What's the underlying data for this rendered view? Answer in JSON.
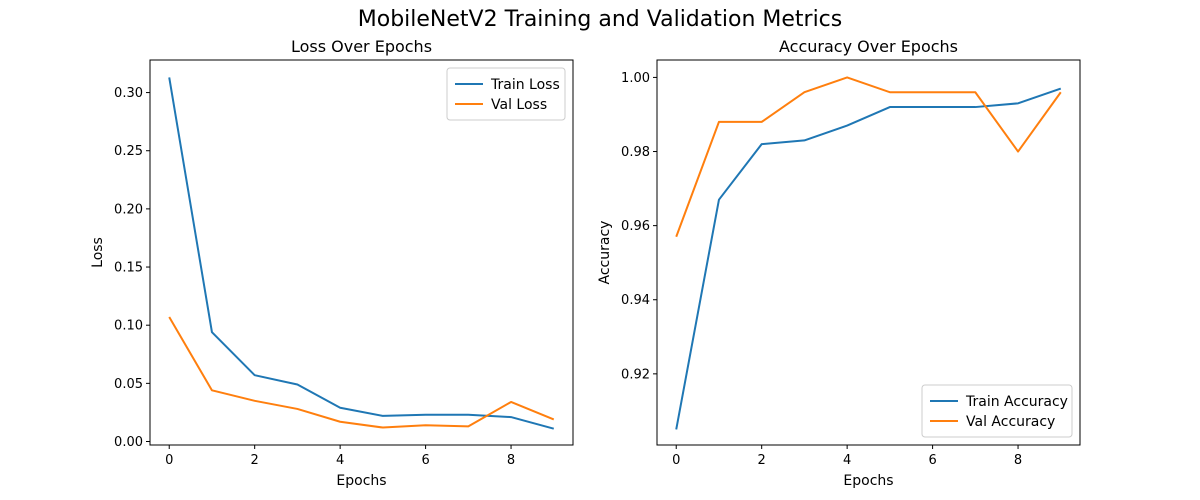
{
  "figure": {
    "title": "MobileNetV2 Training and Validation Metrics"
  },
  "chart_data": [
    {
      "type": "line",
      "title": "Loss Over Epochs",
      "xlabel": "Epochs",
      "ylabel": "Loss",
      "x": [
        0,
        1,
        2,
        3,
        4,
        5,
        6,
        7,
        8,
        9
      ],
      "xlim": [
        -0.45,
        9.45
      ],
      "ylim": [
        -0.003,
        0.328
      ],
      "xticks": [
        0,
        2,
        4,
        6,
        8
      ],
      "yticks": [
        0.0,
        0.05,
        0.1,
        0.15,
        0.2,
        0.25,
        0.3
      ],
      "ytick_labels": [
        "0.00",
        "0.05",
        "0.10",
        "0.15",
        "0.20",
        "0.25",
        "0.30"
      ],
      "legend_position": "upper right",
      "grid": false,
      "series": [
        {
          "name": "Train Loss",
          "color": "#1f77b4",
          "values": [
            0.313,
            0.094,
            0.057,
            0.049,
            0.029,
            0.022,
            0.023,
            0.023,
            0.021,
            0.011
          ]
        },
        {
          "name": "Val Loss",
          "color": "#ff7f0e",
          "values": [
            0.107,
            0.044,
            0.035,
            0.028,
            0.017,
            0.012,
            0.014,
            0.013,
            0.034,
            0.019
          ]
        }
      ]
    },
    {
      "type": "line",
      "title": "Accuracy Over Epochs",
      "xlabel": "Epochs",
      "ylabel": "Accuracy",
      "x": [
        0,
        1,
        2,
        3,
        4,
        5,
        6,
        7,
        8,
        9
      ],
      "xlim": [
        -0.45,
        9.45
      ],
      "ylim": [
        0.9008,
        1.0047
      ],
      "xticks": [
        0,
        2,
        4,
        6,
        8
      ],
      "yticks": [
        0.92,
        0.94,
        0.96,
        0.98,
        1.0
      ],
      "ytick_labels": [
        "0.92",
        "0.94",
        "0.96",
        "0.98",
        "1.00"
      ],
      "legend_position": "lower right",
      "grid": false,
      "series": [
        {
          "name": "Train Accuracy",
          "color": "#1f77b4",
          "values": [
            0.905,
            0.967,
            0.982,
            0.983,
            0.987,
            0.992,
            0.992,
            0.992,
            0.993,
            0.997
          ]
        },
        {
          "name": "Val Accuracy",
          "color": "#ff7f0e",
          "values": [
            0.957,
            0.988,
            0.988,
            0.996,
            1.0,
            0.996,
            0.996,
            0.996,
            0.98,
            0.996
          ]
        }
      ]
    }
  ]
}
